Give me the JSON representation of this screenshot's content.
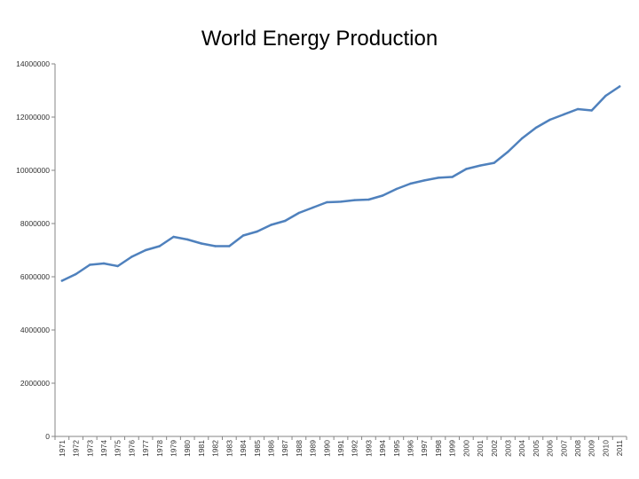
{
  "chart_data": {
    "type": "line",
    "title": "World Energy Production",
    "xlabel": "",
    "ylabel": "",
    "ylim": [
      0,
      14000000
    ],
    "yticks": [
      0,
      2000000,
      4000000,
      6000000,
      8000000,
      10000000,
      12000000,
      14000000
    ],
    "ytick_labels": [
      "0",
      "2000000",
      "4000000",
      "6000000",
      "8000000",
      "10000000",
      "12000000",
      "14000000"
    ],
    "grid": false,
    "legend": "none",
    "line_color": "#4f81bd",
    "categories": [
      "1971",
      "1972",
      "1973",
      "1974",
      "1975",
      "1976",
      "1977",
      "1978",
      "1979",
      "1980",
      "1981",
      "1982",
      "1983",
      "1984",
      "1985",
      "1986",
      "1987",
      "1988",
      "1989",
      "1990",
      "1991",
      "1992",
      "1993",
      "1994",
      "1995",
      "1996",
      "1997",
      "1998",
      "1999",
      "2000",
      "2001",
      "2002",
      "2003",
      "2004",
      "2005",
      "2006",
      "2007",
      "2008",
      "2009",
      "2010",
      "2011"
    ],
    "category_labels": [
      "1971",
      "1972",
      "1973",
      "1974",
      "1975",
      "1976",
      "1977",
      "1978",
      "1979",
      "1980",
      "1981",
      "1982",
      "1983",
      "1984",
      "1985",
      "1986",
      "1987",
      "1988",
      "1989",
      "1990",
      "1991",
      "1992",
      "1993",
      "1994",
      "1995",
      "1996",
      "1997",
      "1998",
      "1999",
      "2000",
      "2001",
      "2002",
      "2003",
      "2004",
      "2005",
      "2006",
      "2007",
      "2008",
      "2009",
      "2010",
      "2011"
    ],
    "series": [
      {
        "values": [
          5850000,
          6100000,
          6450000,
          6500000,
          6400000,
          6750000,
          7000000,
          7150000,
          7500000,
          7400000,
          7250000,
          7150000,
          7150000,
          7550000,
          7700000,
          7950000,
          8100000,
          8400000,
          8600000,
          8800000,
          8820000,
          8880000,
          8900000,
          9050000,
          9300000,
          9500000,
          9620000,
          9720000,
          9750000,
          10050000,
          10180000,
          10280000,
          10700000,
          11200000,
          11600000,
          11900000,
          12100000,
          12300000,
          12250000,
          12800000,
          13150000
        ]
      }
    ]
  }
}
